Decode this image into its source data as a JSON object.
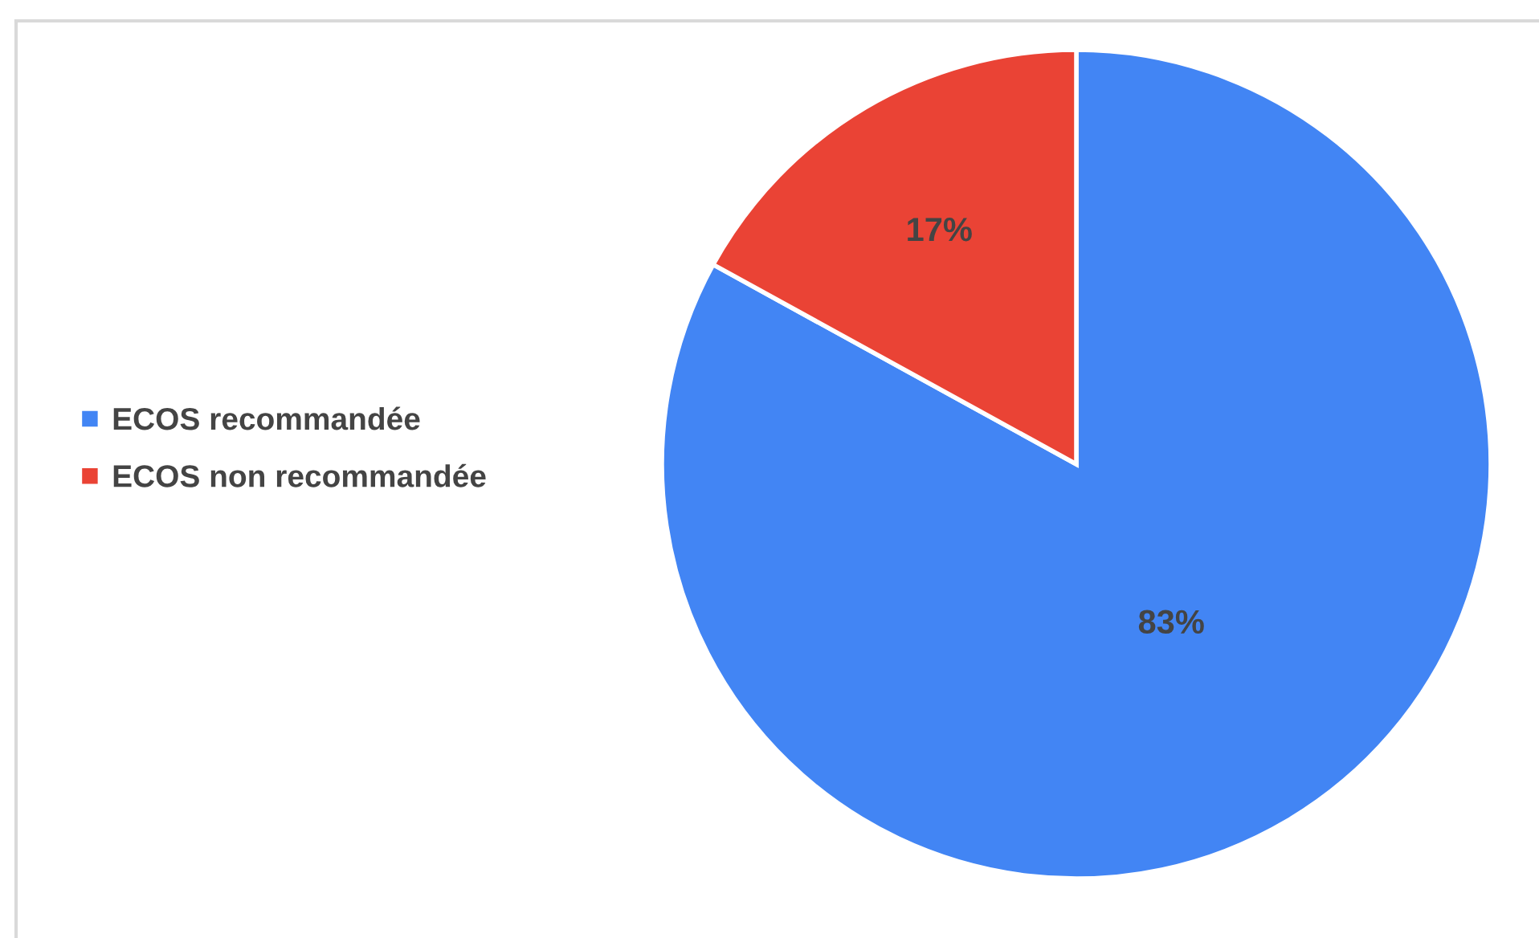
{
  "chart_data": {
    "type": "pie",
    "categories": [
      "ECOS recommandée",
      "ECOS non recommandée"
    ],
    "values": [
      83,
      17
    ],
    "colors": [
      "#4285f4",
      "#ea4335"
    ],
    "value_labels": [
      "83%",
      "17%"
    ],
    "legend": "left"
  }
}
